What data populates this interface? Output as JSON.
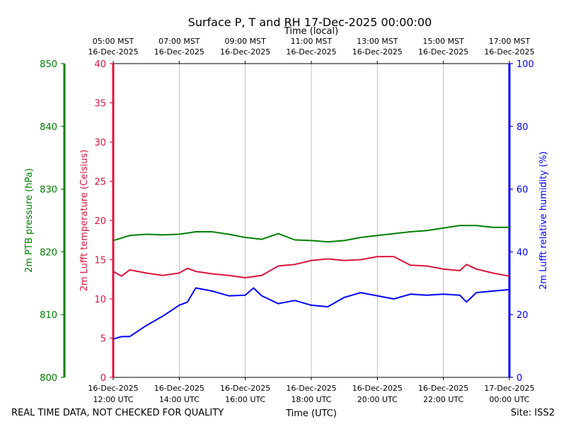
{
  "chart_data": {
    "type": "line",
    "title": "Surface P, T and RH 17-Dec-2025 00:00:00",
    "footer_left": "REAL TIME DATA, NOT CHECKED FOR QUALITY",
    "footer_right": "Site: ISS2",
    "top_axis": {
      "label": "Time (local)",
      "ticks": [
        {
          "x": 0,
          "line1": "05:00 MST",
          "line2": "16-Dec-2025"
        },
        {
          "x": 2,
          "line1": "07:00 MST",
          "line2": "16-Dec-2025"
        },
        {
          "x": 4,
          "line1": "09:00 MST",
          "line2": "16-Dec-2025"
        },
        {
          "x": 6,
          "line1": "11:00 MST",
          "line2": "16-Dec-2025"
        },
        {
          "x": 8,
          "line1": "13:00 MST",
          "line2": "16-Dec-2025"
        },
        {
          "x": 10,
          "line1": "15:00 MST",
          "line2": "16-Dec-2025"
        },
        {
          "x": 12,
          "line1": "17:00 MST",
          "line2": "16-Dec-2025"
        }
      ]
    },
    "bottom_axis": {
      "label": "Time (UTC)",
      "ticks": [
        {
          "x": 0,
          "line1": "16-Dec-2025",
          "line2": "12:00 UTC"
        },
        {
          "x": 2,
          "line1": "16-Dec-2025",
          "line2": "14:00 UTC"
        },
        {
          "x": 4,
          "line1": "16-Dec-2025",
          "line2": "16:00 UTC"
        },
        {
          "x": 6,
          "line1": "16-Dec-2025",
          "line2": "18:00 UTC"
        },
        {
          "x": 8,
          "line1": "16-Dec-2025",
          "line2": "20:00 UTC"
        },
        {
          "x": 10,
          "line1": "16-Dec-2025",
          "line2": "22:00 UTC"
        },
        {
          "x": 12,
          "line1": "17-Dec-2025",
          "line2": "00:00 UTC"
        }
      ]
    },
    "xlim": [
      0,
      12
    ],
    "grid": true,
    "y_axes": [
      {
        "id": "pressure",
        "label": "2m PTB pressure (hPa)",
        "color": "#008000",
        "ylim": [
          800,
          850
        ],
        "ticks": [
          800,
          810,
          820,
          830,
          840,
          850
        ]
      },
      {
        "id": "temperature",
        "label": "2m Lufft temperature (Celsius)",
        "color": "#dc143c",
        "ylim": [
          0,
          40
        ],
        "ticks": [
          0,
          5,
          10,
          15,
          20,
          25,
          30,
          35,
          40
        ]
      },
      {
        "id": "humidity",
        "label": "2m Lufft relative humidity (%)",
        "color": "#0000ff",
        "ylim": [
          0,
          100
        ],
        "ticks": [
          0,
          20,
          40,
          60,
          80,
          100
        ]
      }
    ],
    "series": [
      {
        "axis": "pressure",
        "color": "#008000",
        "x": [
          0,
          0.5,
          1,
          1.5,
          2,
          2.5,
          3,
          3.5,
          4,
          4.5,
          5,
          5.5,
          6,
          6.5,
          7,
          7.5,
          8,
          8.5,
          9,
          9.5,
          10,
          10.5,
          11,
          11.5,
          12
        ],
        "values": [
          821.8,
          822.6,
          822.8,
          822.7,
          822.8,
          823.2,
          823.2,
          822.8,
          822.3,
          822.0,
          822.9,
          821.9,
          821.8,
          821.6,
          821.8,
          822.3,
          822.6,
          822.9,
          823.2,
          823.4,
          823.8,
          824.2,
          824.2,
          823.9,
          823.9
        ]
      },
      {
        "axis": "temperature",
        "color": "#dc143c",
        "x": [
          0,
          0.25,
          0.5,
          1,
          1.5,
          2,
          2.25,
          2.5,
          3,
          3.5,
          4,
          4.5,
          5,
          5.5,
          6,
          6.5,
          7,
          7.5,
          8,
          8.5,
          9,
          9.5,
          10,
          10.5,
          10.7,
          11,
          11.5,
          12
        ],
        "values": [
          13.5,
          12.9,
          13.7,
          13.3,
          13.0,
          13.3,
          13.9,
          13.5,
          13.2,
          13.0,
          12.7,
          13.0,
          14.2,
          14.4,
          14.9,
          15.1,
          14.9,
          15.0,
          15.4,
          15.4,
          14.3,
          14.2,
          13.8,
          13.6,
          14.4,
          13.8,
          13.3,
          12.9
        ]
      },
      {
        "axis": "humidity",
        "color": "#0000ff",
        "x": [
          0,
          0.25,
          0.5,
          1,
          1.5,
          2,
          2.25,
          2.5,
          3,
          3.5,
          4,
          4.25,
          4.5,
          5,
          5.5,
          6,
          6.5,
          7,
          7.5,
          8,
          8.5,
          9,
          9.5,
          10,
          10.5,
          10.7,
          11,
          11.5,
          12
        ],
        "values": [
          12.2,
          13.0,
          13.0,
          16.5,
          19.5,
          23.0,
          24.0,
          28.5,
          27.5,
          26.0,
          26.2,
          28.5,
          26.0,
          23.5,
          24.5,
          23.0,
          22.5,
          25.5,
          27.0,
          26.0,
          25.0,
          26.5,
          26.2,
          26.5,
          26.2,
          24.0,
          27.0,
          27.5,
          28.0
        ]
      }
    ]
  }
}
